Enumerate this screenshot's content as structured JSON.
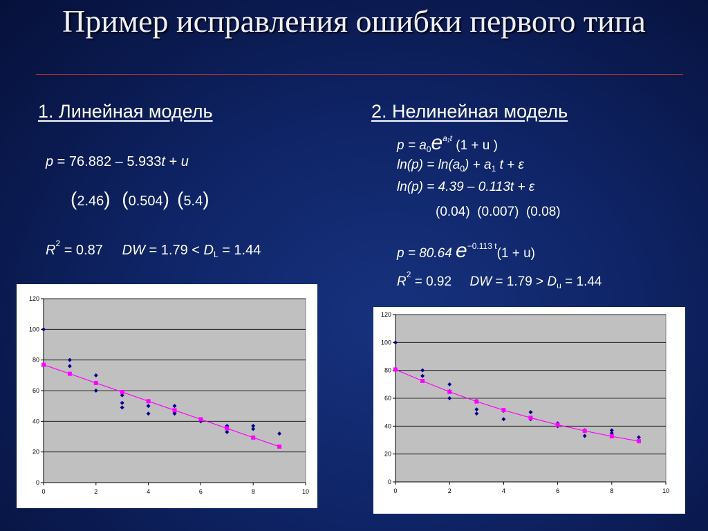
{
  "slide": {
    "title": "Пример исправления ошибки первого типа"
  },
  "left": {
    "heading": "1. Линейная модель",
    "eq_model": {
      "p": "p",
      "eq": " = 76.882 – 5.933",
      "t": "t",
      "plus": " + ",
      "u": "u"
    },
    "se": [
      "2.46",
      "0.504",
      "5.4"
    ],
    "stats": {
      "r": "R",
      "r_pow": "2",
      "r_val": " = 0.87",
      "dw": "DW",
      "dw_val": " = 1.79 < ",
      "d": "D",
      "d_sub": "L",
      "d_val": " = 1.44"
    }
  },
  "right": {
    "heading": "2. Нелинейная модель",
    "eq1": {
      "lhs": "p = a",
      "sub0": "0",
      "e": "e",
      "exp": "a₁t",
      "tail": " (1 + u )"
    },
    "eq2": {
      "ln1": "ln(p) = ln(a",
      "sub0": "0",
      "mid": ") + a",
      "sub1": "1",
      "tail": " t + ε"
    },
    "eq3": "ln(p) = 4.39 – 0.113t + ε",
    "se": [
      "0.04",
      "0.007",
      "0.08"
    ],
    "eq4": {
      "lhs": "p = 80.64 ",
      "e": "e",
      "exp": "−0.113 t",
      "tail": "(1 + u)"
    },
    "stats": {
      "r": "R",
      "r_pow": "2",
      "r_val": " = 0.92",
      "dw": "DW",
      "dw_val": " = 1.79 > ",
      "d": "D",
      "d_sub": "u",
      "d_val": " = 1.44"
    }
  },
  "colors": {
    "observed": "#00008b",
    "fitted": "#ff00ff",
    "plot_bg": "#c0c0c0",
    "grid": "#000000"
  },
  "chart_data": [
    {
      "type": "scatter",
      "title": "",
      "xlabel": "",
      "ylabel": "",
      "xlim": [
        0,
        10
      ],
      "ylim": [
        0,
        120
      ],
      "xticks": [
        0,
        2,
        4,
        6,
        8,
        10
      ],
      "yticks": [
        0,
        20,
        40,
        60,
        80,
        100,
        120
      ],
      "grid": "horizontal",
      "legend": "none",
      "series": [
        {
          "kind": "markers",
          "color": "#00008b",
          "points": [
            [
              0,
              100
            ],
            [
              1,
              80
            ],
            [
              1,
              76
            ],
            [
              2,
              70
            ],
            [
              2,
              65
            ],
            [
              2,
              60
            ],
            [
              3,
              59
            ],
            [
              3,
              57
            ],
            [
              3,
              52
            ],
            [
              3,
              49
            ],
            [
              4,
              50
            ],
            [
              4,
              45
            ],
            [
              5,
              50
            ],
            [
              5,
              46
            ],
            [
              5,
              45
            ],
            [
              6,
              41
            ],
            [
              6,
              40
            ],
            [
              7,
              37
            ],
            [
              7,
              35
            ],
            [
              7,
              33
            ],
            [
              8,
              37
            ],
            [
              8,
              35
            ],
            [
              9,
              32
            ]
          ]
        },
        {
          "kind": "line",
          "color": "#ff00ff",
          "points": [
            [
              0,
              76.9
            ],
            [
              1,
              71.0
            ],
            [
              2,
              65.0
            ],
            [
              3,
              59.1
            ],
            [
              4,
              53.1
            ],
            [
              5,
              47.2
            ],
            [
              6,
              41.3
            ],
            [
              7,
              35.4
            ],
            [
              8,
              29.4
            ],
            [
              9,
              23.5
            ]
          ]
        }
      ]
    },
    {
      "type": "scatter",
      "title": "",
      "xlabel": "",
      "ylabel": "",
      "xlim": [
        0,
        10
      ],
      "ylim": [
        0,
        120
      ],
      "xticks": [
        0,
        2,
        4,
        6,
        8,
        10
      ],
      "yticks": [
        0,
        20,
        40,
        60,
        80,
        100,
        120
      ],
      "grid": "horizontal",
      "legend": "none",
      "series": [
        {
          "kind": "markers",
          "color": "#00008b",
          "points": [
            [
              0,
              100
            ],
            [
              1,
              80
            ],
            [
              1,
              76
            ],
            [
              2,
              70
            ],
            [
              2,
              65
            ],
            [
              2,
              60
            ],
            [
              3,
              58
            ],
            [
              3,
              52
            ],
            [
              3,
              49
            ],
            [
              4,
              51
            ],
            [
              4,
              45
            ],
            [
              5,
              50
            ],
            [
              5,
              45
            ],
            [
              6,
              42
            ],
            [
              6,
              40
            ],
            [
              7,
              37
            ],
            [
              7,
              33
            ],
            [
              8,
              37
            ],
            [
              8,
              35
            ],
            [
              9,
              32
            ]
          ]
        },
        {
          "kind": "line",
          "color": "#ff00ff",
          "points": [
            [
              0,
              80.6
            ],
            [
              1,
              72.4
            ],
            [
              2,
              64.6
            ],
            [
              3,
              57.7
            ],
            [
              4,
              51.5
            ],
            [
              5,
              46.0
            ],
            [
              6,
              41.0
            ],
            [
              7,
              36.6
            ],
            [
              8,
              32.7
            ],
            [
              9,
              29.2
            ]
          ]
        }
      ]
    }
  ]
}
